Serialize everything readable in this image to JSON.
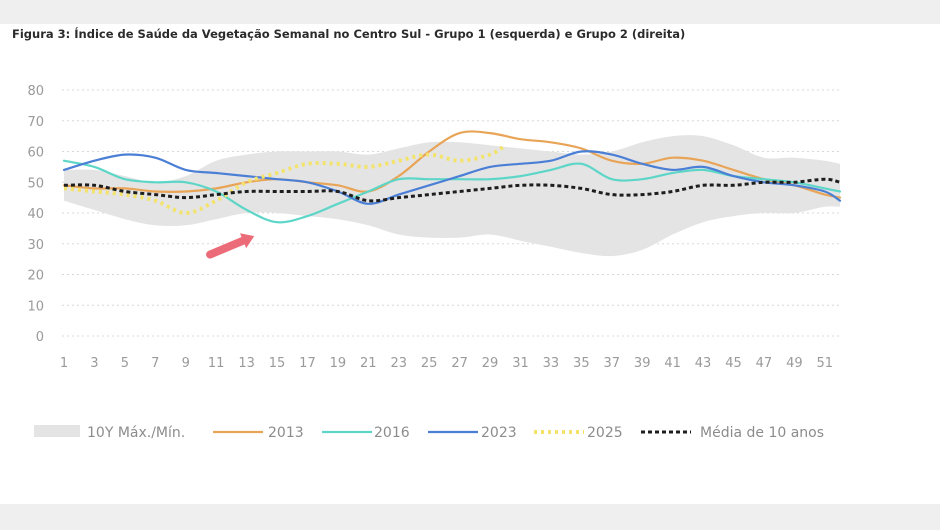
{
  "figure_title": "Figura 3: Índice de Saúde da Vegetação Semanal no Centro Sul - Grupo 1 (esquerda) e Grupo 2 (direita)",
  "chart_data": {
    "type": "line",
    "title": "",
    "xlabel": "",
    "ylabel": "",
    "ylim": [
      0,
      80
    ],
    "yticks": [
      "0",
      "10",
      "20",
      "30",
      "40",
      "50",
      "60",
      "70",
      "80"
    ],
    "xlim": [
      1,
      52
    ],
    "xticks": [
      "1",
      "3",
      "5",
      "7",
      "9",
      "11",
      "13",
      "15",
      "17",
      "19",
      "21",
      "23",
      "25",
      "27",
      "29",
      "31",
      "33",
      "35",
      "37",
      "39",
      "41",
      "43",
      "45",
      "47",
      "49",
      "51"
    ],
    "grid": "horizontal dotted",
    "legend_position": "bottom",
    "band": {
      "name": "10Y Máx./Mín.",
      "color": "#e4e4e4",
      "x": [
        1,
        3,
        5,
        7,
        9,
        11,
        13,
        15,
        17,
        19,
        21,
        23,
        25,
        27,
        29,
        31,
        33,
        35,
        37,
        39,
        41,
        43,
        45,
        47,
        49,
        51,
        52
      ],
      "max": [
        54,
        54,
        52,
        50,
        52,
        57,
        59,
        60,
        60,
        60,
        59,
        61,
        63,
        63,
        62,
        61,
        60,
        59,
        60,
        63,
        65,
        65,
        62,
        58,
        58,
        57,
        56
      ],
      "min": [
        44,
        41,
        38,
        36,
        36,
        38,
        40,
        40,
        39,
        38,
        36,
        33,
        32,
        32,
        33,
        31,
        29,
        27,
        26,
        28,
        33,
        37,
        39,
        40,
        40,
        42,
        42
      ]
    },
    "series": [
      {
        "name": "2013",
        "color": "#e8a457",
        "dash": "solid",
        "x": [
          1,
          3,
          5,
          7,
          9,
          11,
          13,
          15,
          17,
          19,
          21,
          23,
          25,
          27,
          29,
          31,
          33,
          35,
          37,
          39,
          41,
          43,
          45,
          47,
          49,
          51,
          52
        ],
        "y": [
          49,
          48,
          48,
          47,
          47,
          48,
          50,
          51,
          50,
          49,
          47,
          52,
          60,
          66,
          66,
          64,
          63,
          61,
          57,
          56,
          58,
          57,
          54,
          51,
          49,
          46,
          45
        ]
      },
      {
        "name": "2016",
        "color": "#5dd6c8",
        "dash": "solid",
        "x": [
          1,
          3,
          5,
          7,
          9,
          11,
          13,
          15,
          17,
          19,
          21,
          23,
          25,
          27,
          29,
          31,
          33,
          35,
          37,
          39,
          41,
          43,
          45,
          47,
          49,
          51,
          52
        ],
        "y": [
          57,
          55,
          51,
          50,
          50,
          47,
          41,
          37,
          39,
          43,
          47,
          51,
          51,
          51,
          51,
          52,
          54,
          56,
          51,
          51,
          53,
          54,
          52,
          51,
          50,
          48,
          47
        ]
      },
      {
        "name": "2023",
        "color": "#4b7fd6",
        "dash": "solid",
        "x": [
          1,
          3,
          5,
          7,
          9,
          11,
          13,
          15,
          17,
          19,
          21,
          23,
          25,
          27,
          29,
          31,
          33,
          35,
          37,
          39,
          41,
          43,
          45,
          47,
          49,
          51,
          52
        ],
        "y": [
          54,
          57,
          59,
          58,
          54,
          53,
          52,
          51,
          50,
          47,
          43,
          46,
          49,
          52,
          55,
          56,
          57,
          60,
          59,
          56,
          54,
          55,
          52,
          50,
          49,
          47,
          44
        ]
      },
      {
        "name": "2025",
        "color": "#f3e36a",
        "dash": "dotted",
        "x": [
          1,
          3,
          5,
          7,
          9,
          11,
          13,
          15,
          17,
          19,
          21,
          23,
          25,
          27,
          29,
          30
        ],
        "y": [
          48,
          47,
          46,
          44,
          40,
          44,
          50,
          53,
          56,
          56,
          55,
          57,
          59,
          57,
          59,
          62
        ]
      },
      {
        "name": "Média de 10 anos",
        "color": "#1e1e1e",
        "dash": "dashed",
        "x": [
          1,
          3,
          5,
          7,
          9,
          11,
          13,
          15,
          17,
          19,
          21,
          23,
          25,
          27,
          29,
          31,
          33,
          35,
          37,
          39,
          41,
          43,
          45,
          47,
          49,
          51,
          52
        ],
        "y": [
          49,
          49,
          47,
          46,
          45,
          46,
          47,
          47,
          47,
          47,
          44,
          45,
          46,
          47,
          48,
          49,
          49,
          48,
          46,
          46,
          47,
          49,
          49,
          50,
          50,
          51,
          50
        ]
      }
    ],
    "annotations": [
      {
        "type": "arrow",
        "color": "#ec6b78",
        "from": [
          10.6,
          26.5
        ],
        "to": [
          13.5,
          32.5
        ]
      }
    ]
  }
}
